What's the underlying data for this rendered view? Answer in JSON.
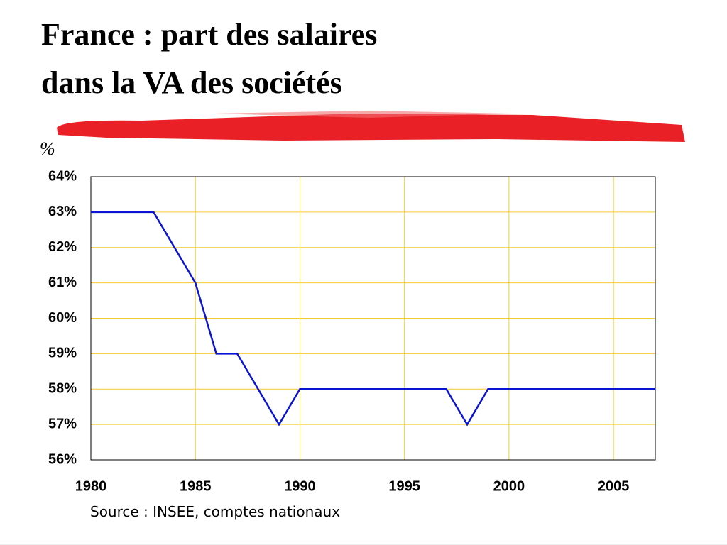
{
  "chart_data": {
    "type": "line",
    "title": [
      "France : part des salaires",
      "dans la VA des sociétés"
    ],
    "y_unit": "%",
    "source": "Source : INSEE, comptes nationaux",
    "x": [
      1980,
      1981,
      1982,
      1983,
      1984,
      1985,
      1986,
      1987,
      1988,
      1989,
      1990,
      1991,
      1992,
      1993,
      1994,
      1995,
      1996,
      1997,
      1998,
      1999,
      2000,
      2001,
      2002,
      2003,
      2004,
      2005,
      2006,
      2007
    ],
    "series": [
      {
        "color": "#0a14d2",
        "values": [
          63,
          63,
          63,
          63,
          62,
          61,
          59,
          59,
          58,
          57,
          58,
          58,
          58,
          58,
          58,
          58,
          58,
          58,
          57,
          58,
          58,
          58,
          58,
          58,
          58,
          58,
          58,
          58
        ]
      }
    ],
    "xlim": [
      1980,
      2007
    ],
    "xticks": [
      1980,
      1985,
      1990,
      1995,
      2000,
      2005
    ],
    "ylim": [
      56,
      64
    ],
    "yticks": [
      {
        "value": 56,
        "label": "56%"
      },
      {
        "value": 57,
        "label": "57%"
      },
      {
        "value": 58,
        "label": "58%"
      },
      {
        "value": 59,
        "label": "59%"
      },
      {
        "value": 60,
        "label": "60%"
      },
      {
        "value": 61,
        "label": "61%"
      },
      {
        "value": 62,
        "label": "62%"
      },
      {
        "value": 63,
        "label": "63%"
      },
      {
        "value": 64,
        "label": "64%"
      }
    ],
    "grid": true,
    "grid_color": "#f2cc30"
  }
}
